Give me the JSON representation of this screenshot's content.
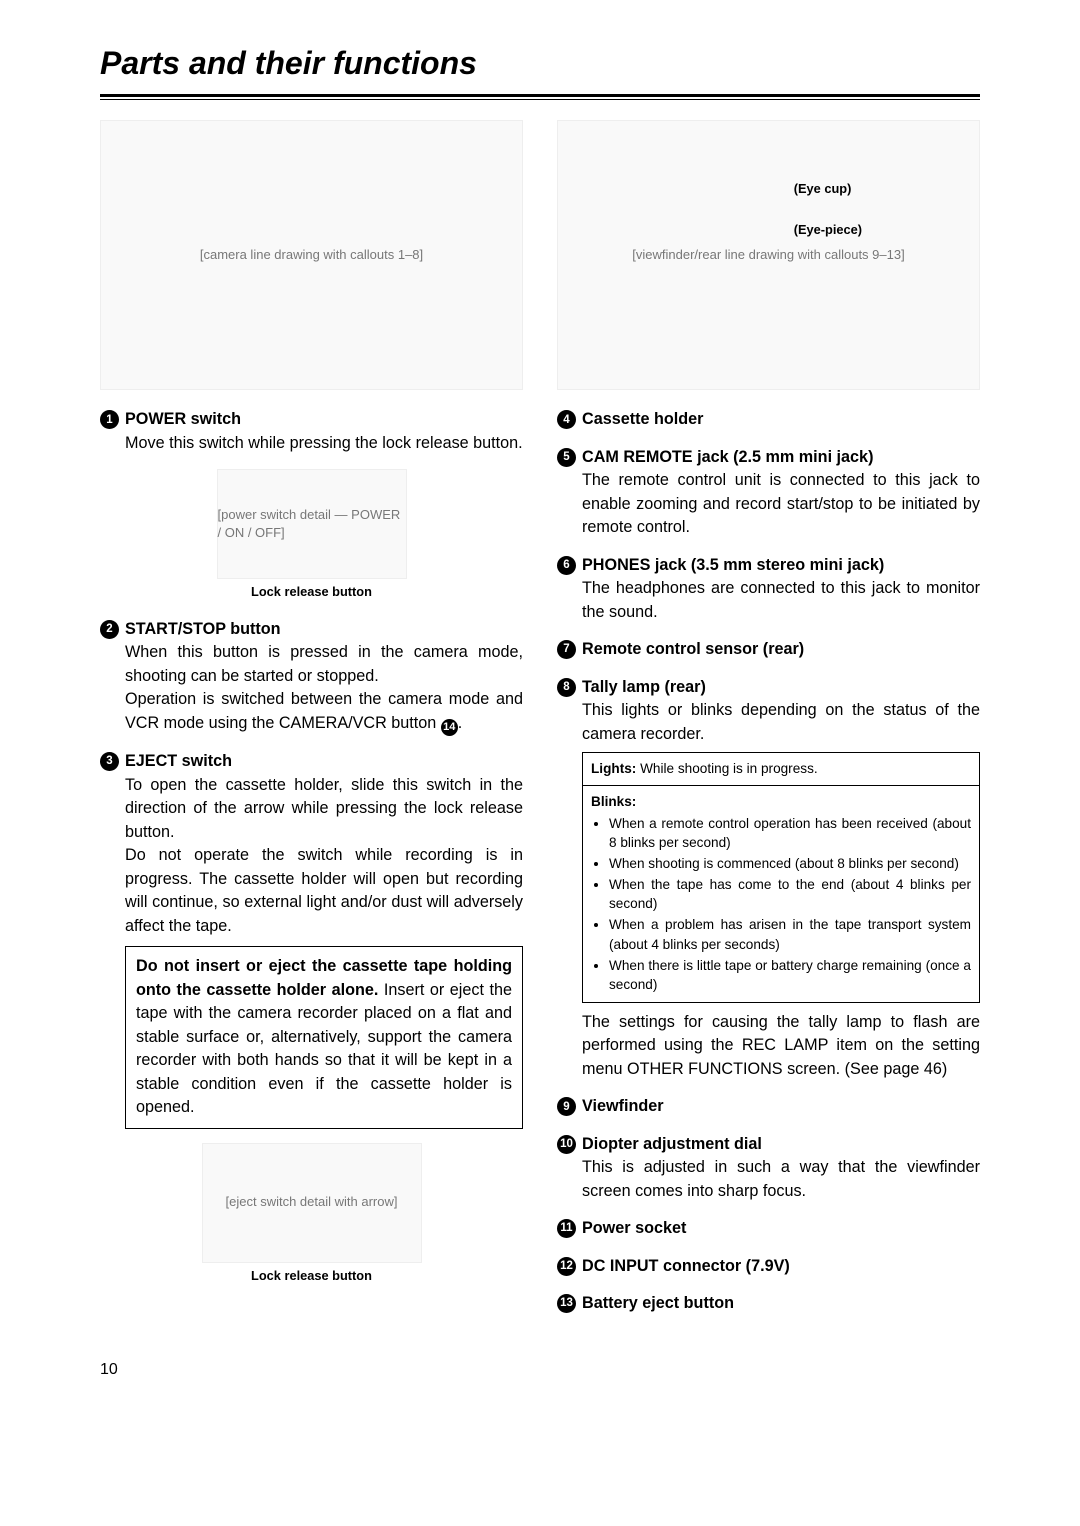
{
  "page": {
    "title": "Parts and their functions",
    "number": "10"
  },
  "diagrams": {
    "camera_placeholder": "[camera line drawing with callouts 1–8]",
    "power_placeholder": "[power switch detail — POWER / ON / OFF]",
    "eject_placeholder": "[eject switch detail with arrow]",
    "viewfinder_placeholder": "[viewfinder/rear line drawing with callouts 9–13]",
    "eye_cup_label": "(Eye cup)",
    "eye_piece_label": "(Eye-piece)",
    "lock_release_caption": "Lock release button"
  },
  "left": {
    "item1": {
      "num": "1",
      "title": "POWER switch",
      "body": "Move this switch while pressing the lock release button."
    },
    "item2": {
      "num": "2",
      "title": "START/STOP button",
      "body1": "When this button is pressed in the camera mode, shooting can be started or stopped.",
      "body2a": "Operation is switched between the camera mode and VCR mode using the CAMERA/VCR button ",
      "body2_num": "14",
      "body2b": "."
    },
    "item3": {
      "num": "3",
      "title": "EJECT switch",
      "body1": "To open the cassette holder, slide this switch in the direction of the arrow while pressing the lock release button.",
      "body2": "Do not operate the switch while recording is in progress.  The cassette holder will open but recording will continue, so external light and/or dust will adversely affect the tape.",
      "warn_strong": "Do not insert or eject the cassette tape holding onto the cassette holder alone.",
      "warn_body": "Insert or eject the tape with the camera recorder placed on a flat and stable surface or, alternatively, support the camera recorder with both hands so that it will be kept in a stable condition even if the cassette holder is opened."
    }
  },
  "right": {
    "item4": {
      "num": "4",
      "title": "Cassette holder"
    },
    "item5": {
      "num": "5",
      "title": "CAM REMOTE jack (2.5 mm mini jack)",
      "body": "The remote control unit is connected to this jack to enable zooming and record start/stop to be initiated by remote control."
    },
    "item6": {
      "num": "6",
      "title": "PHONES jack (3.5 mm stereo mini jack)",
      "body": "The headphones are connected to this jack to monitor the sound."
    },
    "item7": {
      "num": "7",
      "title": "Remote control sensor (rear)"
    },
    "item8": {
      "num": "8",
      "title": "Tally lamp (rear)",
      "body": "This lights or blinks depending on the status of the camera recorder.",
      "lights_label": "Lights:",
      "lights_text": " While shooting is in progress.",
      "blinks_label": "Blinks:",
      "blinks": [
        "When a remote control operation has been received (about 8 blinks per second)",
        "When shooting is commenced (about 8 blinks per second)",
        "When the tape has come to the end (about 4 blinks per second)",
        "When a problem has arisen in the tape transport system (about 4 blinks per seconds)",
        "When there is little tape or battery charge remaining (once a second)"
      ],
      "after": "The settings for causing the tally lamp to flash are performed using the REC LAMP item on the setting menu OTHER FUNCTIONS screen.  (See page 46)"
    },
    "item9": {
      "num": "9",
      "title": "Viewfinder"
    },
    "item10": {
      "num": "10",
      "title": "Diopter adjustment dial",
      "body": "This is adjusted in such a way that the viewfinder screen comes into sharp focus."
    },
    "item11": {
      "num": "11",
      "title": "Power socket"
    },
    "item12": {
      "num": "12",
      "title": "DC INPUT connector (7.9V)"
    },
    "item13": {
      "num": "13",
      "title": "Battery eject button"
    }
  }
}
